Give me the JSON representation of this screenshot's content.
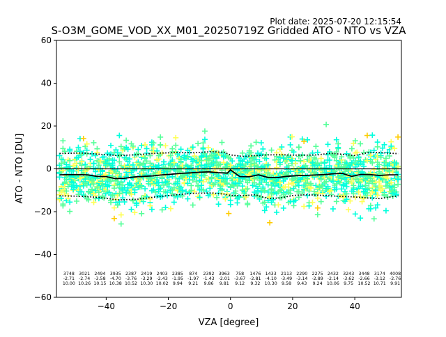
{
  "plot_date": "Plot date: 2025-07-20 12:15:54",
  "chart_data": {
    "type": "scatter",
    "title": "S-O3M_GOME_VOD_XX_M01_20250719Z Gridded ATO - NTO vs VZA",
    "xlabel": "VZA [degree]",
    "ylabel": "ATO - NTO [DU]",
    "xlim": [
      -56,
      55
    ],
    "ylim": [
      -60,
      60
    ],
    "xticks": [
      -40,
      -20,
      0,
      20,
      40
    ],
    "yticks": [
      -60,
      -40,
      -20,
      0,
      20,
      40,
      60
    ],
    "grid": false,
    "marker": "+",
    "colors": {
      "density_low": "#00ffdd",
      "density_mid": "#55ff99",
      "density_high": "#ffff55",
      "sparse_yellow": "#ffcc00",
      "sparse_blue": "#0033ff",
      "mean_line": "#000000",
      "zero_line": "#000000",
      "std_lines": "#000000"
    },
    "bins": {
      "vza_centers": [
        -52,
        -47,
        -42,
        -37,
        -32,
        -27,
        -22,
        -17,
        -12,
        -7,
        -2,
        3,
        8,
        13,
        18,
        23,
        28,
        33,
        38,
        43,
        48,
        53
      ],
      "counts": [
        "3748",
        "3021",
        "2494",
        "3935",
        "2387",
        "2419",
        "2403",
        "2385",
        "874",
        "2392",
        "3963",
        "758",
        "1476",
        "1433",
        "2113",
        "2290",
        "2275",
        "2432",
        "3243",
        "3448",
        "3174",
        "4008"
      ],
      "mean": [
        "-2.71",
        "-2.74",
        "-3.58",
        "-4.70",
        "-3.76",
        "-3.29",
        "-2.43",
        "-1.95",
        "-1.97",
        "-1.43",
        "-2.01",
        "-3.67",
        "-2.81",
        "-4.10",
        "-3.49",
        "-3.14",
        "-2.89",
        "-2.14",
        "-3.62",
        "-2.66",
        "-3.12",
        "-2.76"
      ],
      "std": [
        "10.00",
        "10.26",
        "10.15",
        "10.38",
        "10.52",
        "10.30",
        "10.02",
        "9.94",
        "9.21",
        "9.86",
        "9.81",
        "9.12",
        "9.32",
        "10.30",
        "9.58",
        "9.43",
        "9.24",
        "10.06",
        "9.75",
        "10.52",
        "10.71",
        "9.91"
      ]
    },
    "mean_line": {
      "x": [
        -55,
        -52,
        -49,
        -46,
        -43,
        -40,
        -37,
        -34,
        -31,
        -28,
        -25,
        -22,
        -19,
        -16,
        -13,
        -10,
        -7,
        -4,
        -1,
        0,
        3,
        6,
        9,
        12,
        15,
        18,
        21,
        24,
        27,
        30,
        33,
        36,
        39,
        42,
        45,
        48,
        51,
        54
      ],
      "y": [
        -2.8,
        -2.7,
        -2.7,
        -2.8,
        -3.5,
        -3.6,
        -4.6,
        -4.4,
        -3.8,
        -3.5,
        -3.3,
        -2.8,
        -2.5,
        -2.1,
        -1.9,
        -1.6,
        -1.4,
        -1.8,
        -2.0,
        -0.5,
        -3.6,
        -3.7,
        -2.8,
        -4.0,
        -4.1,
        -3.5,
        -3.2,
        -3.1,
        -2.9,
        -2.7,
        -2.3,
        -2.1,
        -3.5,
        -2.6,
        -2.7,
        -3.1,
        -2.8,
        -2.8
      ]
    },
    "std_upper": {
      "x": [
        -55,
        -48,
        -42,
        -36,
        -30,
        -24,
        -18,
        -12,
        -6,
        -2,
        0,
        4,
        8,
        12,
        16,
        20,
        24,
        28,
        32,
        36,
        40,
        44,
        48,
        54
      ],
      "y": [
        7.2,
        7.4,
        6.8,
        6.2,
        6.6,
        7.3,
        7.6,
        7.5,
        8.0,
        7.7,
        6.5,
        5.8,
        6.2,
        6.5,
        6.6,
        6.4,
        6.4,
        6.5,
        7.3,
        6.8,
        6.2,
        7.5,
        7.6,
        7.1
      ]
    },
    "std_lower": {
      "x": [
        -55,
        -48,
        -42,
        -36,
        -30,
        -24,
        -18,
        -12,
        -6,
        -2,
        0,
        4,
        8,
        12,
        16,
        20,
        24,
        28,
        32,
        36,
        40,
        44,
        48,
        54
      ],
      "y": [
        -12.6,
        -12.8,
        -13.4,
        -14.5,
        -14.2,
        -13.1,
        -12.2,
        -11.4,
        -11.3,
        -11.8,
        -12.4,
        -12.6,
        -12.1,
        -13.9,
        -13.6,
        -12.5,
        -12.1,
        -12.3,
        -12.6,
        -12.9,
        -13.1,
        -13.6,
        -13.9,
        -12.6
      ]
    }
  }
}
